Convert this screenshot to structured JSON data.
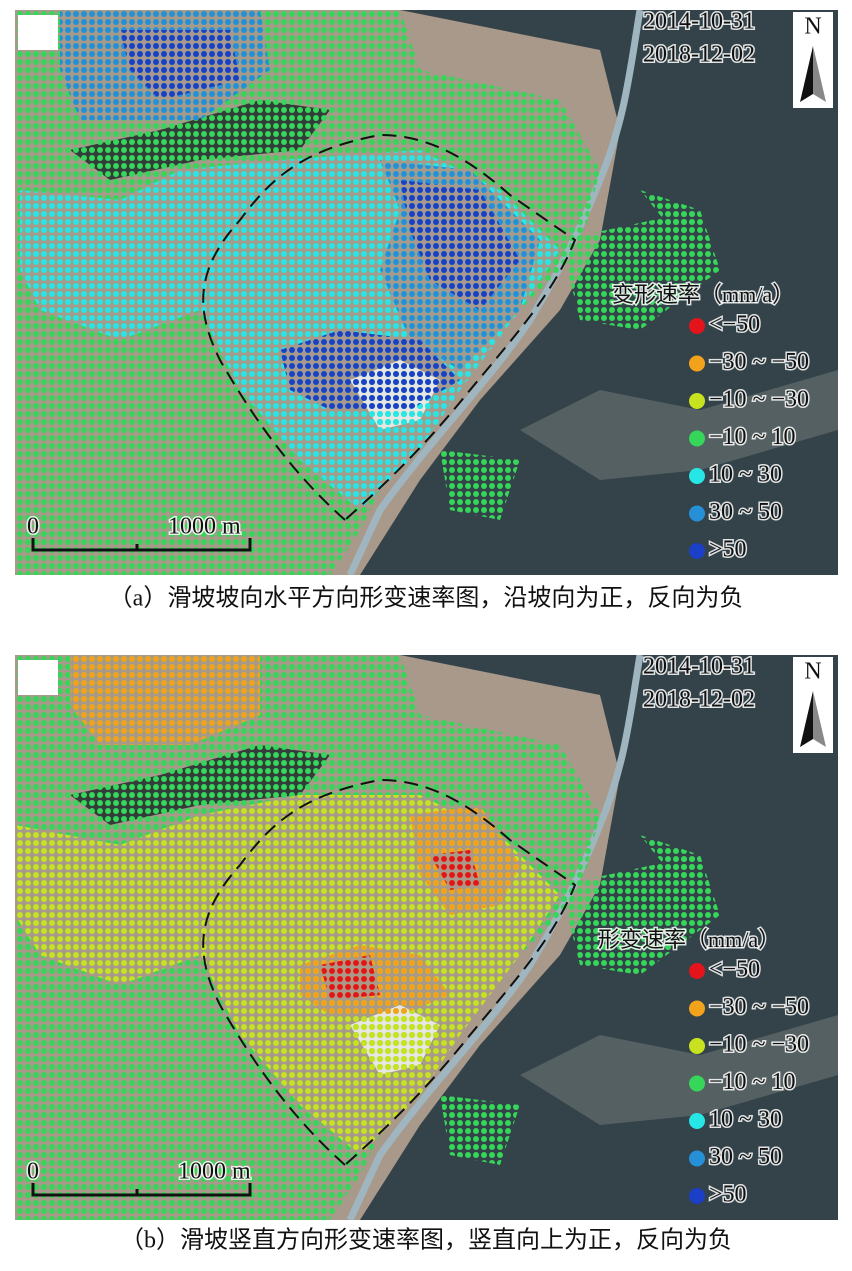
{
  "panels": [
    {
      "dates": [
        "2014-10-31",
        "2018-12-02"
      ],
      "north": "N",
      "legend": {
        "title": "变形速率（mm/a）",
        "items": [
          {
            "label": "<−50",
            "color": "#e3141b"
          },
          {
            "label": "−30 ~ −50",
            "color": "#f3a31b"
          },
          {
            "label": "−10 ~ −30",
            "color": "#c8e21f"
          },
          {
            "label": "−10 ~ 10",
            "color": "#35d65a"
          },
          {
            "label": "10 ~ 30",
            "color": "#27e6e6"
          },
          {
            "label": "30 ~ 50",
            "color": "#2590d8"
          },
          {
            "label": ">50",
            "color": "#1c3fc8"
          }
        ]
      },
      "scale": {
        "start": "0",
        "end": "1000 m"
      },
      "caption": "（a）滑坡坡向水平方向形变速率图，沿坡向为正，反向为负"
    },
    {
      "dates": [
        "2014-10-31",
        "2018-12-02"
      ],
      "north": "N",
      "legend": {
        "title": "形变速率（mm/a）",
        "items": [
          {
            "label": "<−50",
            "color": "#e3141b"
          },
          {
            "label": "−30 ~ −50",
            "color": "#f3a31b"
          },
          {
            "label": "−10 ~ −30",
            "color": "#c8e21f"
          },
          {
            "label": "−10 ~ 10",
            "color": "#35d65a"
          },
          {
            "label": "10 ~ 30",
            "color": "#27e6e6"
          },
          {
            "label": "30 ~ 50",
            "color": "#2590d8"
          },
          {
            "label": ">50",
            "color": "#1c3fc8"
          }
        ]
      },
      "scale": {
        "start": "0",
        "end": "1000 m"
      },
      "caption": "（b）滑坡竖直方向形变速率图，竖直向上为正，反向为负"
    }
  ]
}
